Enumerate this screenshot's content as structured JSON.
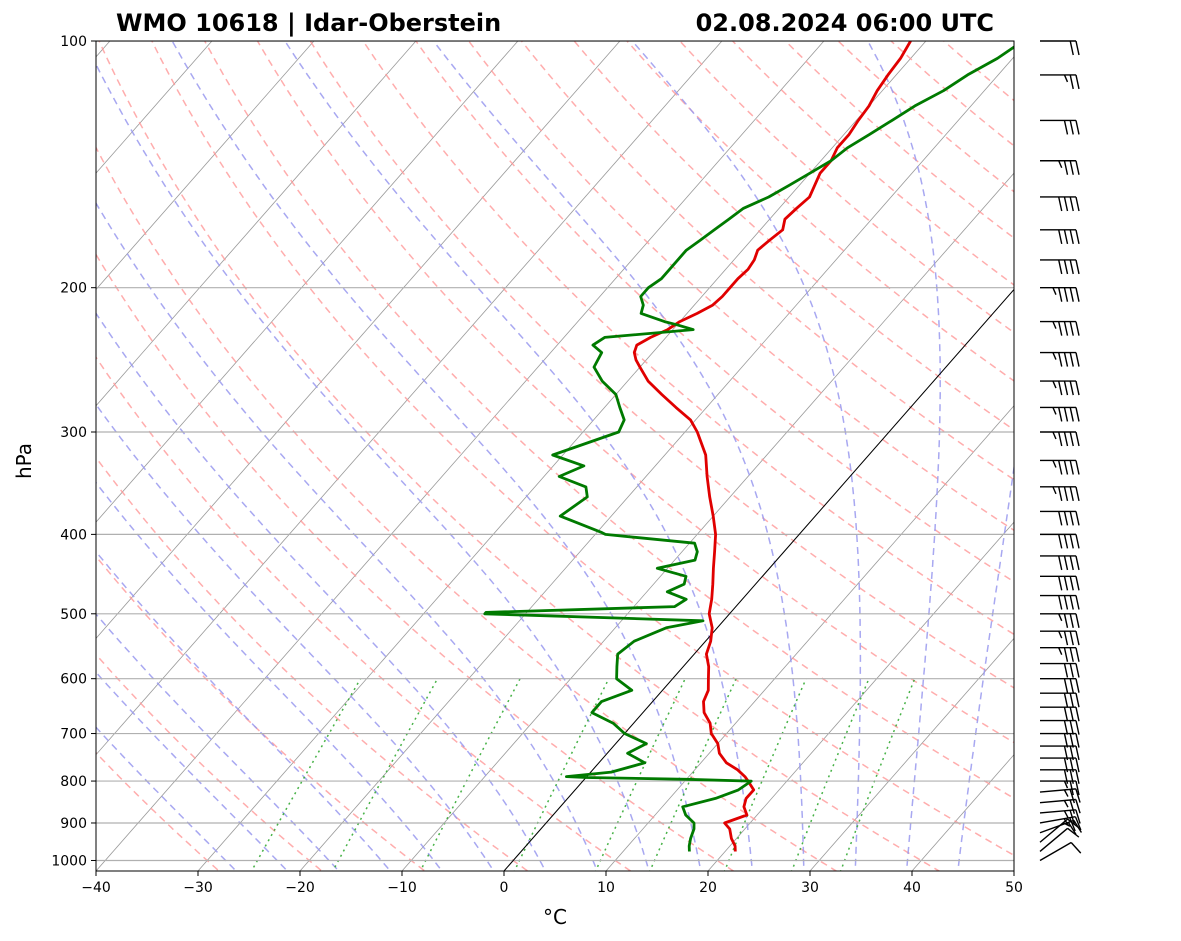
{
  "header": {
    "title_left": "WMO 10618 | Idar-Oberstein",
    "title_right": "02.08.2024 06:00 UTC"
  },
  "colors": {
    "temperature": "#e00000",
    "dewpoint": "#007a00",
    "dry_adiabat": "#ff9999",
    "moist_adiabat": "#9999ee",
    "mixing_ratio": "#33aa33",
    "isotherm": "#888888",
    "isobar_grid": "#b0b0b0",
    "zero_isotherm": "#000000",
    "barb": "#000000"
  },
  "chart_data": {
    "type": "line",
    "subtype": "skew-t log-p diagram",
    "xlabel": "°C",
    "ylabel": "hPa",
    "xlim": [
      -40,
      50
    ],
    "ylim": [
      1030,
      100
    ],
    "y_scale": "log",
    "x_ticks": [
      -40,
      -30,
      -20,
      -10,
      0,
      10,
      20,
      30,
      40,
      50
    ],
    "x_tick_labels": [
      "−40",
      "−30",
      "−20",
      "−10",
      "0",
      "10",
      "20",
      "30",
      "40",
      "50"
    ],
    "y_ticks": [
      1000,
      900,
      800,
      700,
      600,
      500,
      400,
      300,
      200,
      100
    ],
    "y_tick_labels": [
      "1000",
      "900",
      "800",
      "700",
      "600",
      "500",
      "400",
      "300",
      "200",
      "100"
    ],
    "grid": true,
    "background_lines": [
      "dry adiabats",
      "moist adiabats",
      "mixing ratio lines",
      "skewed isotherms"
    ],
    "series": [
      {
        "role": "temperature",
        "pressure": [
          975,
          960,
          940,
          915,
          900,
          880,
          860,
          840,
          820,
          800,
          790,
          775,
          760,
          740,
          720,
          700,
          680,
          660,
          640,
          620,
          600,
          580,
          560,
          540,
          520,
          500,
          480,
          460,
          440,
          420,
          400,
          380,
          360,
          340,
          320,
          300,
          290,
          280,
          270,
          260,
          250,
          245,
          240,
          235,
          230,
          225,
          220,
          215,
          210,
          205,
          200,
          195,
          190,
          185,
          180,
          175,
          170,
          165,
          160,
          155,
          150,
          145,
          140,
          135,
          130,
          125,
          120,
          115,
          110,
          105,
          100
        ],
        "values": [
          21,
          20.5,
          19.5,
          18.5,
          17.5,
          19,
          18,
          17.5,
          17.5,
          16.2,
          15.5,
          14.2,
          12.5,
          11.0,
          10.0,
          8.5,
          7.5,
          6.0,
          5.0,
          4.5,
          3.5,
          2.5,
          1.2,
          0.5,
          -0.5,
          -2.0,
          -3.0,
          -4.2,
          -5.5,
          -6.8,
          -8.2,
          -10.0,
          -12.0,
          -14.0,
          -16.0,
          -18.8,
          -20.5,
          -23.0,
          -25.5,
          -28.0,
          -30.0,
          -31.0,
          -31.8,
          -32.2,
          -31.5,
          -30.5,
          -30.0,
          -29.0,
          -28.2,
          -28.0,
          -28.0,
          -28.0,
          -27.8,
          -28.0,
          -28.5,
          -28.2,
          -27.8,
          -28.5,
          -28.3,
          -28.0,
          -28.5,
          -29.0,
          -29.0,
          -29.5,
          -29.5,
          -29.8,
          -30.0,
          -30.5,
          -30.8,
          -31.0,
          -31.5
        ]
      },
      {
        "role": "dewpoint",
        "pressure": [
          975,
          960,
          940,
          915,
          900,
          880,
          860,
          840,
          820,
          800,
          796,
          792,
          790,
          780,
          760,
          740,
          720,
          700,
          680,
          660,
          640,
          620,
          600,
          580,
          560,
          540,
          520,
          510,
          500,
          498,
          490,
          480,
          470,
          460,
          450,
          440,
          430,
          420,
          410,
          400,
          398,
          380,
          360,
          350,
          340,
          330,
          320,
          300,
          290,
          280,
          270,
          260,
          250,
          240,
          235,
          230,
          225,
          222,
          220,
          215,
          210,
          205,
          200,
          195,
          190,
          185,
          180,
          175,
          170,
          165,
          160,
          155,
          150,
          145,
          140,
          135,
          130,
          125,
          120,
          115,
          110,
          105,
          100
        ],
        "values": [
          16.5,
          16.0,
          15.5,
          15.0,
          14.5,
          13.0,
          12.0,
          14.5,
          16.0,
          16.5,
          10.0,
          0.0,
          -2.0,
          2.0,
          4.5,
          2.0,
          3.0,
          0.0,
          -2.0,
          -5.0,
          -5.0,
          -3.0,
          -5.5,
          -6.5,
          -7.5,
          -7.0,
          -5.0,
          -2.0,
          -24.0,
          -24.0,
          -6.0,
          -5.5,
          -8.0,
          -7.0,
          -7.5,
          -11.0,
          -8.0,
          -8.5,
          -9.5,
          -19.0,
          -19.5,
          -25.0,
          -24.0,
          -25.0,
          -28.5,
          -27.0,
          -31.0,
          -26.5,
          -27.0,
          -28.5,
          -30.0,
          -32.5,
          -34.5,
          -35.0,
          -36.5,
          -36.0,
          -28.0,
          -30.0,
          -31.5,
          -34.5,
          -35.0,
          -36.0,
          -36.0,
          -35.5,
          -35.5,
          -35.5,
          -35.5,
          -35.0,
          -34.5,
          -34.0,
          -33.5,
          -32.0,
          -31.0,
          -30.0,
          -29.0,
          -28.5,
          -27.5,
          -26.5,
          -25.5,
          -24.0,
          -23.0,
          -21.5,
          -20.5
        ]
      }
    ],
    "wind_barbs": {
      "pressure": [
        1000,
        975,
        950,
        925,
        900,
        875,
        850,
        825,
        800,
        775,
        750,
        725,
        700,
        675,
        650,
        625,
        600,
        575,
        550,
        525,
        500,
        475,
        450,
        425,
        400,
        375,
        350,
        325,
        300,
        280,
        260,
        240,
        220,
        200,
        185,
        170,
        155,
        140,
        125,
        110,
        100
      ],
      "speed_kt": [
        10,
        10,
        15,
        20,
        25,
        25,
        25,
        25,
        25,
        30,
        30,
        30,
        30,
        30,
        30,
        30,
        30,
        30,
        35,
        35,
        35,
        40,
        40,
        40,
        40,
        40,
        45,
        45,
        45,
        45,
        45,
        45,
        45,
        45,
        40,
        40,
        40,
        35,
        30,
        25,
        20
      ],
      "direction_deg": [
        240,
        230,
        230,
        250,
        260,
        265,
        265,
        265,
        270,
        270,
        270,
        270,
        270,
        270,
        270,
        270,
        270,
        270,
        270,
        270,
        270,
        270,
        270,
        270,
        270,
        270,
        270,
        270,
        270,
        270,
        270,
        270,
        270,
        270,
        270,
        270,
        270,
        270,
        270,
        270,
        270
      ]
    }
  }
}
